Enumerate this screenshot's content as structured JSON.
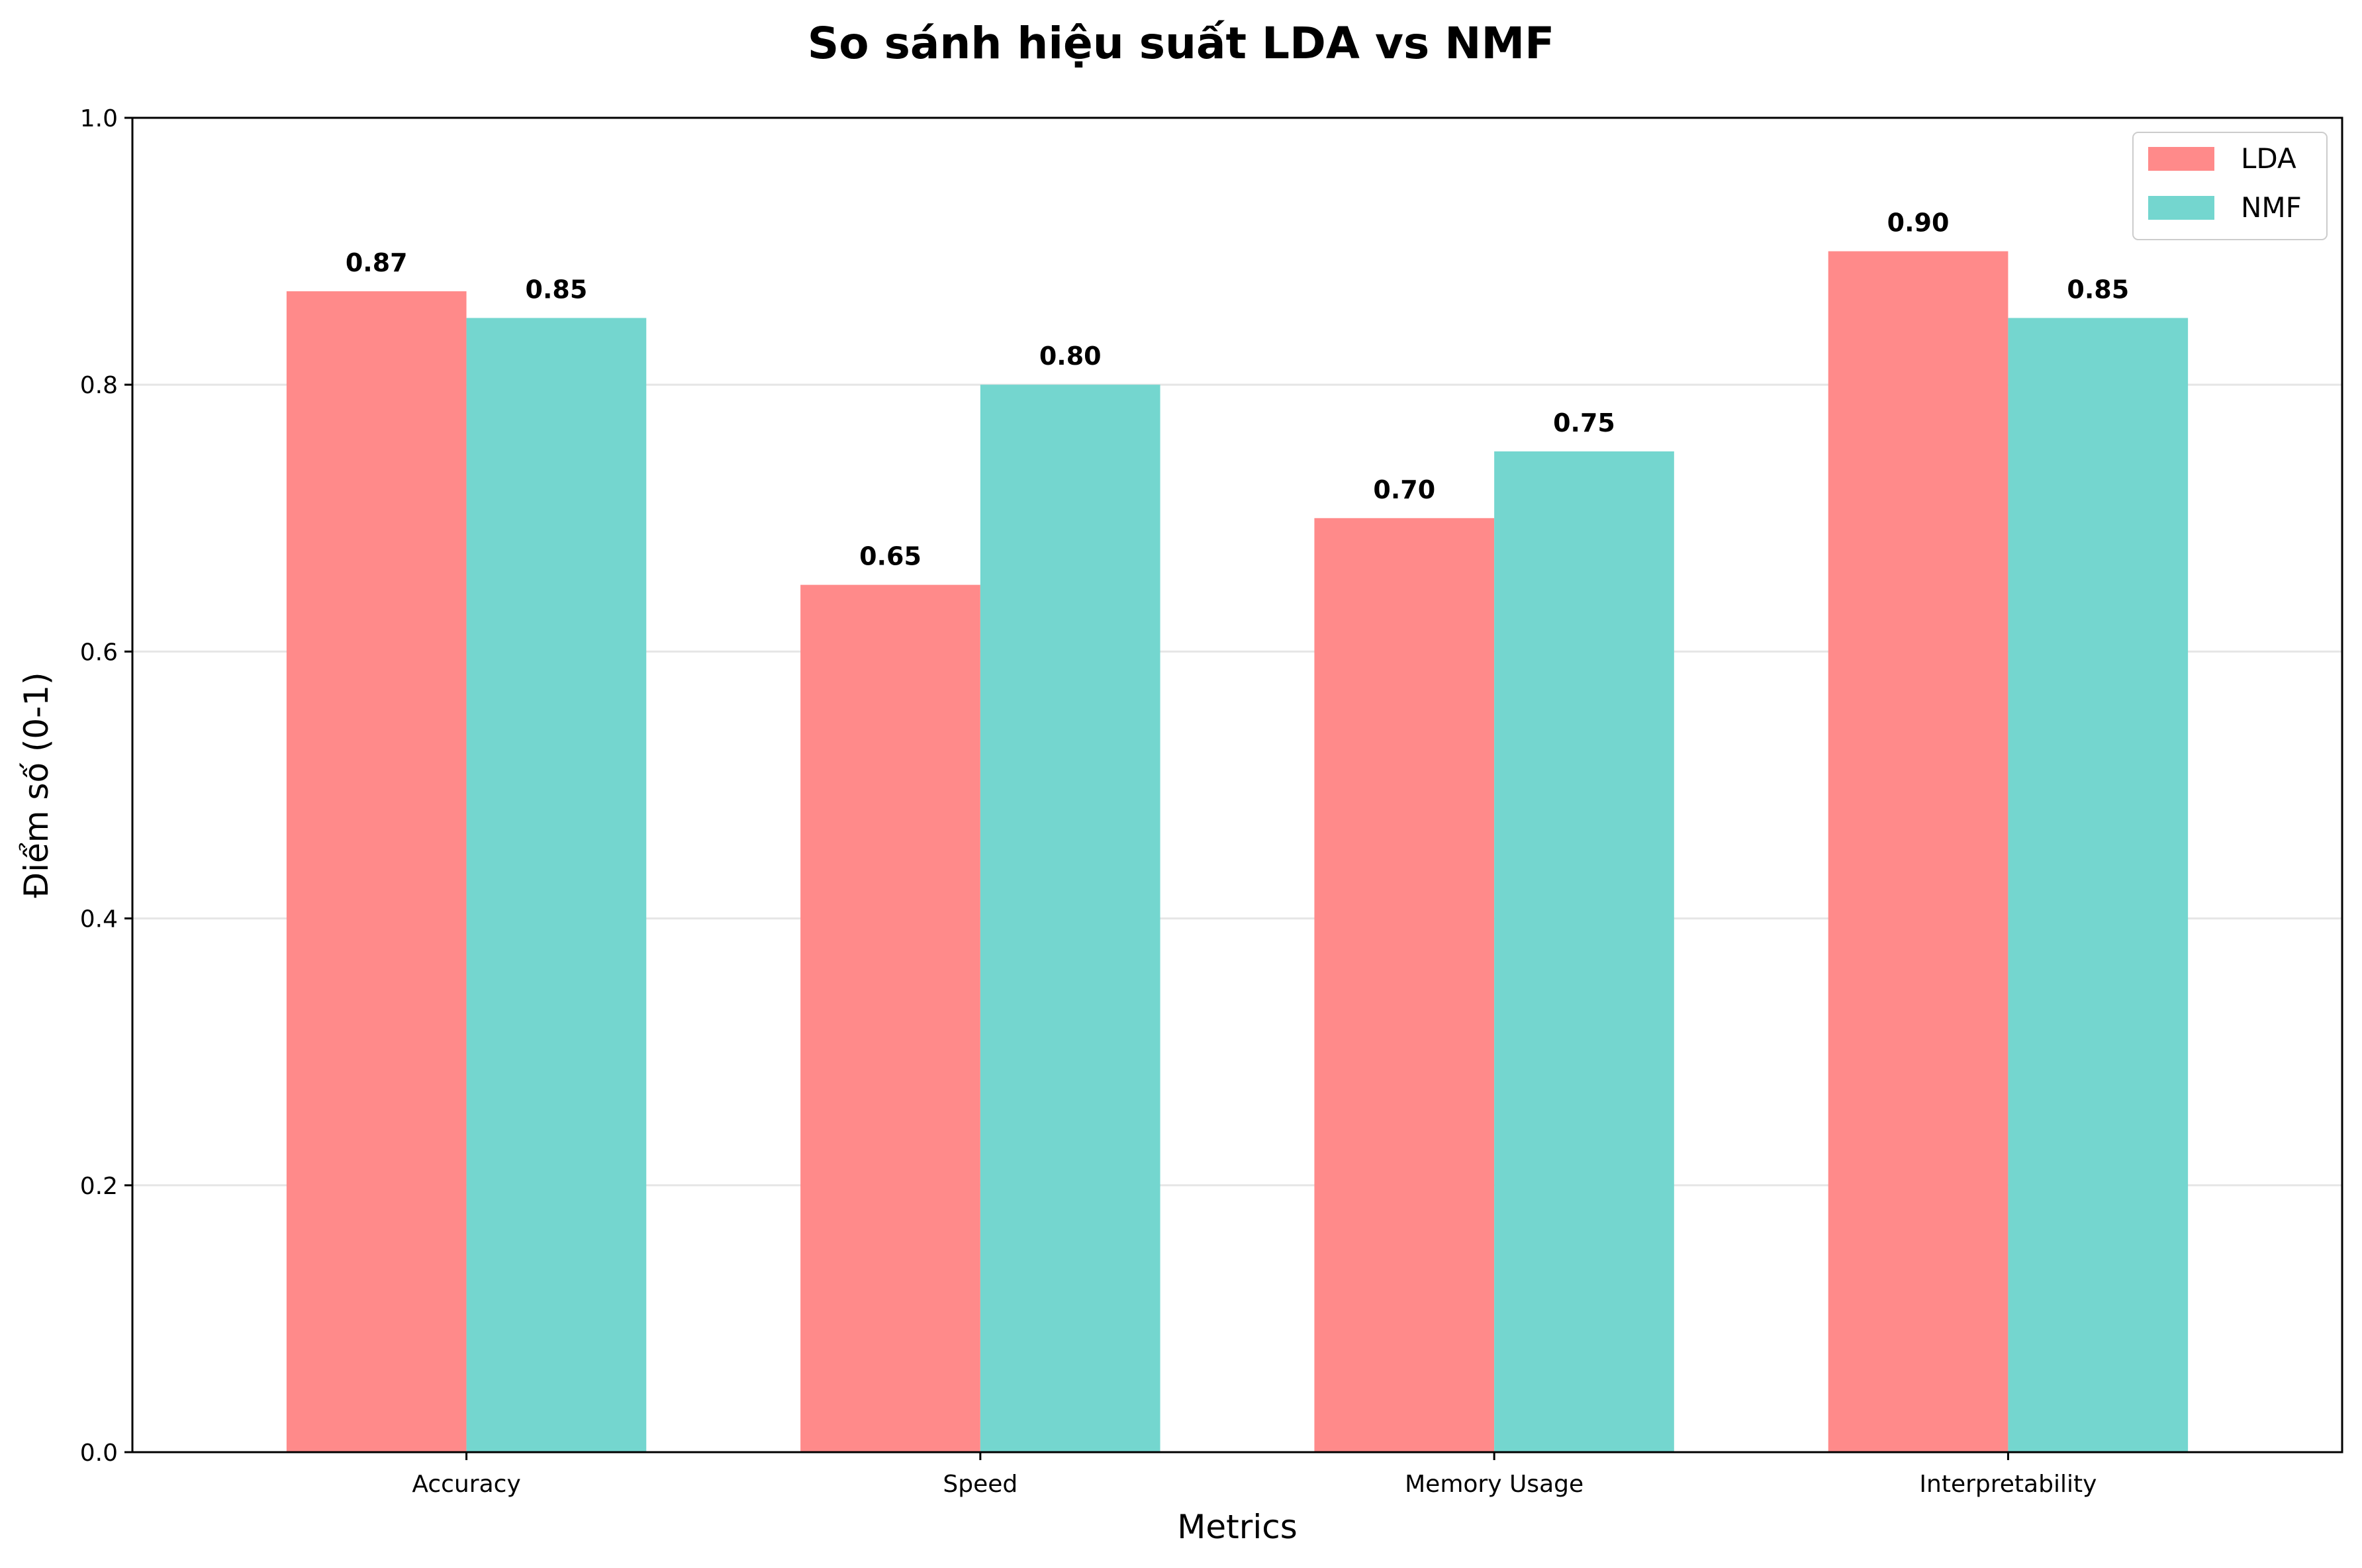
{
  "chart_data": {
    "type": "bar",
    "title": "So sánh hiệu suất LDA vs NMF",
    "xlabel": "Metrics",
    "ylabel": "Điểm số (0-1)",
    "categories": [
      "Accuracy",
      "Speed",
      "Memory Usage",
      "Interpretability"
    ],
    "series": [
      {
        "name": "LDA",
        "color": "#ff8a8a",
        "values": [
          0.87,
          0.65,
          0.7,
          0.9
        ],
        "labels": [
          "0.87",
          "0.65",
          "0.70",
          "0.90"
        ]
      },
      {
        "name": "NMF",
        "color": "#74d6cf",
        "values": [
          0.85,
          0.8,
          0.75,
          0.85
        ],
        "labels": [
          "0.85",
          "0.80",
          "0.75",
          "0.85"
        ]
      }
    ],
    "ylim": [
      0,
      1.0
    ],
    "yticks": [
      0.0,
      0.2,
      0.4,
      0.6,
      0.8,
      1.0
    ],
    "ytick_labels": [
      "0.0",
      "0.2",
      "0.4",
      "0.6",
      "0.8",
      "1.0"
    ],
    "grid": "y",
    "legend_position": "top-right"
  }
}
